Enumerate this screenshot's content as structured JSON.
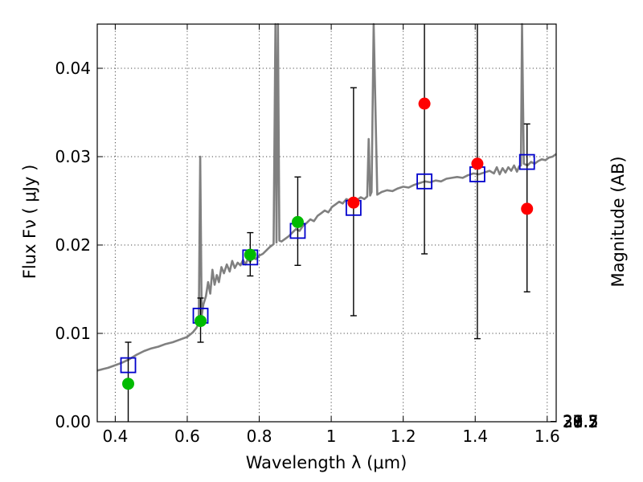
{
  "chart_data": {
    "type": "scatter",
    "xlabel": "Wavelength  λ (μm)",
    "ylabel": "Flux  Fν  ( μJy )",
    "ylabel_right": "Magnitude (AB)",
    "xlim": [
      0.35,
      1.625
    ],
    "ylim": [
      0.0,
      0.045
    ],
    "grid": true,
    "x_ticks": [
      0.4,
      0.6,
      0.8,
      1.0,
      1.2,
      1.4,
      1.6
    ],
    "x_tick_labels": [
      "0.4",
      "0.6",
      "0.8",
      "1",
      "1.2",
      "1.4",
      "1.6"
    ],
    "y_ticks": [
      0.0,
      0.01,
      0.02,
      0.03,
      0.04
    ],
    "y_tick_labels": [
      "0.00",
      "0.01",
      "0.02",
      "0.03",
      "0.04"
    ],
    "right_ticks": [
      "27.3",
      "27.5",
      "27.7",
      "28",
      "28.2",
      "28.5",
      "29",
      "29.5",
      "30",
      "31"
    ],
    "colors": {
      "spectrum": "#808080",
      "model": "#0000cc",
      "detection": "#00bb00",
      "photometry_red": "#ff0000",
      "errorbar": "#000000"
    },
    "series": [
      {
        "role": "spectrum",
        "x": [
          0.35,
          0.38,
          0.4,
          0.42,
          0.44,
          0.46,
          0.48,
          0.5,
          0.52,
          0.54,
          0.56,
          0.58,
          0.6,
          0.615,
          0.625,
          0.632,
          0.636,
          0.64,
          0.645,
          0.652,
          0.658,
          0.664,
          0.67,
          0.676,
          0.682,
          0.688,
          0.695,
          0.702,
          0.71,
          0.718,
          0.725,
          0.732,
          0.74,
          0.748,
          0.755,
          0.762,
          0.768,
          0.775,
          0.782,
          0.79,
          0.8,
          0.81,
          0.82,
          0.83,
          0.84,
          0.845,
          0.848,
          0.852,
          0.856,
          0.862,
          0.872,
          0.882,
          0.892,
          0.902,
          0.912,
          0.922,
          0.932,
          0.942,
          0.952,
          0.962,
          0.972,
          0.982,
          0.992,
          1.002,
          1.012,
          1.022,
          1.032,
          1.042,
          1.052,
          1.062,
          1.072,
          1.082,
          1.092,
          1.1,
          1.104,
          1.108,
          1.112,
          1.118,
          1.128,
          1.14,
          1.155,
          1.17,
          1.185,
          1.2,
          1.215,
          1.23,
          1.245,
          1.26,
          1.275,
          1.29,
          1.305,
          1.32,
          1.335,
          1.35,
          1.365,
          1.38,
          1.395,
          1.41,
          1.425,
          1.44,
          1.452,
          1.46,
          1.468,
          1.476,
          1.484,
          1.492,
          1.5,
          1.508,
          1.516,
          1.522,
          1.527,
          1.53,
          1.535,
          1.545,
          1.555,
          1.565,
          1.575,
          1.585,
          1.595,
          1.605,
          1.615,
          1.625
        ],
        "y": [
          0.0058,
          0.0061,
          0.0064,
          0.0067,
          0.0071,
          0.0076,
          0.008,
          0.0083,
          0.0085,
          0.0088,
          0.009,
          0.0093,
          0.0096,
          0.0101,
          0.0106,
          0.0111,
          0.03,
          0.012,
          0.0133,
          0.0142,
          0.0158,
          0.0145,
          0.0172,
          0.0155,
          0.0166,
          0.0158,
          0.0175,
          0.0168,
          0.0178,
          0.017,
          0.0182,
          0.0174,
          0.018,
          0.0177,
          0.0183,
          0.0178,
          0.0184,
          0.0181,
          0.0186,
          0.0184,
          0.0188,
          0.019,
          0.0194,
          0.0198,
          0.0201,
          0.045,
          0.0203,
          0.045,
          0.0205,
          0.0204,
          0.0207,
          0.021,
          0.0214,
          0.0218,
          0.0216,
          0.0222,
          0.0225,
          0.0229,
          0.0227,
          0.0233,
          0.0236,
          0.0239,
          0.0237,
          0.0243,
          0.0246,
          0.0249,
          0.0247,
          0.0252,
          0.025,
          0.0253,
          0.0251,
          0.0254,
          0.0252,
          0.0255,
          0.032,
          0.0256,
          0.026,
          0.045,
          0.0257,
          0.026,
          0.0262,
          0.0261,
          0.0264,
          0.0266,
          0.0265,
          0.0268,
          0.027,
          0.0272,
          0.0271,
          0.0273,
          0.0272,
          0.0275,
          0.0276,
          0.0277,
          0.0276,
          0.0279,
          0.0281,
          0.028,
          0.0282,
          0.0284,
          0.0281,
          0.0288,
          0.028,
          0.0287,
          0.0282,
          0.0288,
          0.0284,
          0.029,
          0.0283,
          0.0289,
          0.029,
          0.045,
          0.0292,
          0.029,
          0.0294,
          0.0292,
          0.0295,
          0.0297,
          0.0296,
          0.0299,
          0.03,
          0.0303
        ]
      },
      {
        "role": "model",
        "x": [
          0.436,
          0.637,
          0.775,
          0.907,
          1.062,
          1.259,
          1.406,
          1.544
        ],
        "y": [
          0.0064,
          0.012,
          0.0186,
          0.0216,
          0.0242,
          0.0272,
          0.028,
          0.0294
        ]
      },
      {
        "role": "detection",
        "x": [
          0.436,
          0.637,
          0.775,
          0.907
        ],
        "y": [
          0.0043,
          0.0114,
          0.0189,
          0.0226
        ],
        "yerr_low": [
          0.0045,
          0.0024,
          0.0024,
          0.0049
        ],
        "yerr_high": [
          0.0047,
          0.0026,
          0.0025,
          0.0051
        ]
      },
      {
        "role": "photometry_red",
        "x": [
          1.062,
          1.259,
          1.406,
          1.544
        ],
        "y": [
          0.0248,
          0.036,
          0.0292,
          0.0241
        ],
        "yerr_low": [
          0.0128,
          0.017,
          0.0198,
          0.0094
        ],
        "yerr_high": [
          0.013,
          0.009,
          0.0158,
          0.0096
        ]
      }
    ]
  }
}
